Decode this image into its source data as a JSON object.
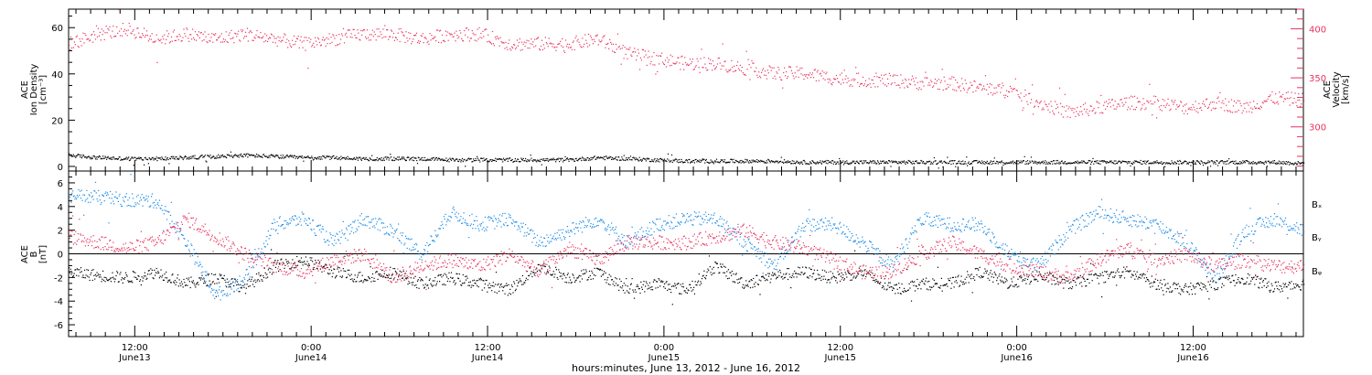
{
  "chart_data": [
    {
      "type": "scatter",
      "panel": "top",
      "ylabel_left": [
        "ACE",
        "Ion Density",
        "[cm⁻³]"
      ],
      "ylabel_right": [
        "ACE",
        "Velocity",
        "[km/s]"
      ],
      "ylim_left": [
        -2,
        68
      ],
      "ylim_right": [
        255,
        420
      ],
      "yticks_left": [
        0,
        20,
        40,
        60
      ],
      "yticks_right": [
        300,
        350,
        400
      ],
      "colors": {
        "density": "#000000",
        "velocity": "#e8335f"
      },
      "series": [
        {
          "axis": "left",
          "color": "#000000",
          "points": [
            [
              0,
              5
            ],
            [
              2,
              4
            ],
            [
              4,
              3.5
            ],
            [
              6,
              3.5
            ],
            [
              8,
              4
            ],
            [
              10,
              4.5
            ],
            [
              12,
              5
            ],
            [
              14,
              4.5
            ],
            [
              16,
              4
            ],
            [
              18,
              4
            ],
            [
              20,
              3.5
            ],
            [
              22,
              3.5
            ],
            [
              24,
              3.5
            ],
            [
              26,
              3
            ],
            [
              28,
              3
            ],
            [
              30,
              3
            ],
            [
              32,
              3
            ],
            [
              34,
              3
            ],
            [
              36,
              4
            ],
            [
              38,
              3.5
            ],
            [
              40,
              3
            ],
            [
              42,
              2.5
            ],
            [
              44,
              2.5
            ],
            [
              46,
              2.5
            ],
            [
              48,
              2.5
            ],
            [
              50,
              2
            ],
            [
              52,
              2
            ],
            [
              54,
              2
            ],
            [
              56,
              2
            ],
            [
              58,
              2
            ],
            [
              60,
              2
            ],
            [
              62,
              2
            ],
            [
              64,
              2
            ],
            [
              66,
              2
            ],
            [
              68,
              2
            ],
            [
              70,
              2
            ],
            [
              72,
              2
            ],
            [
              74,
              2
            ],
            [
              76,
              2
            ],
            [
              78,
              2
            ],
            [
              80,
              2
            ],
            [
              82,
              2
            ],
            [
              84,
              1.5
            ]
          ]
        },
        {
          "axis": "right",
          "color": "#e8335f",
          "points": [
            [
              0,
              385
            ],
            [
              2,
              395
            ],
            [
              4,
              400
            ],
            [
              6,
              390
            ],
            [
              8,
              395
            ],
            [
              10,
              390
            ],
            [
              12,
              395
            ],
            [
              14,
              390
            ],
            [
              16,
              385
            ],
            [
              18,
              390
            ],
            [
              20,
              395
            ],
            [
              22,
              395
            ],
            [
              24,
              390
            ],
            [
              26,
              395
            ],
            [
              28,
              395
            ],
            [
              30,
              385
            ],
            [
              32,
              385
            ],
            [
              34,
              385
            ],
            [
              36,
              390
            ],
            [
              38,
              375
            ],
            [
              40,
              370
            ],
            [
              42,
              365
            ],
            [
              44,
              365
            ],
            [
              46,
              360
            ],
            [
              48,
              355
            ],
            [
              50,
              355
            ],
            [
              52,
              350
            ],
            [
              54,
              348
            ],
            [
              56,
              348
            ],
            [
              58,
              345
            ],
            [
              60,
              345
            ],
            [
              62,
              340
            ],
            [
              64,
              338
            ],
            [
              66,
              325
            ],
            [
              68,
              315
            ],
            [
              70,
              320
            ],
            [
              72,
              325
            ],
            [
              74,
              325
            ],
            [
              76,
              320
            ],
            [
              78,
              325
            ],
            [
              80,
              320
            ],
            [
              82,
              330
            ],
            [
              84,
              328
            ]
          ]
        }
      ]
    },
    {
      "type": "scatter",
      "panel": "bottom",
      "ylabel_left": [
        "ACE",
        "B",
        "[nT]"
      ],
      "ylim": [
        -7,
        7
      ],
      "yticks": [
        -6,
        -4,
        -2,
        0,
        2,
        4,
        6
      ],
      "legend": [
        "Bₓ",
        "Bᵧ",
        "Bᵩ"
      ],
      "legend_placement": "right",
      "colors": {
        "Bx": "#000000",
        "By": "#1a8ae6",
        "Bz": "#e8335f"
      },
      "series": [
        {
          "name": "Bₓ",
          "color": "#000000",
          "points": [
            [
              0,
              -1.5
            ],
            [
              2,
              -1.8
            ],
            [
              4,
              -2
            ],
            [
              6,
              -1.5
            ],
            [
              8,
              -2.5
            ],
            [
              10,
              -2
            ],
            [
              12,
              -2.8
            ],
            [
              14,
              -1
            ],
            [
              16,
              -0.5
            ],
            [
              18,
              -1.5
            ],
            [
              20,
              -2
            ],
            [
              22,
              -1.5
            ],
            [
              24,
              -2.5
            ],
            [
              26,
              -2
            ],
            [
              28,
              -2.5
            ],
            [
              30,
              -3
            ],
            [
              32,
              -1
            ],
            [
              34,
              -2
            ],
            [
              36,
              -1.5
            ],
            [
              38,
              -3
            ],
            [
              40,
              -2.5
            ],
            [
              42,
              -3
            ],
            [
              44,
              -1
            ],
            [
              46,
              -2.5
            ],
            [
              48,
              -1.8
            ],
            [
              50,
              -1.5
            ],
            [
              52,
              -2
            ],
            [
              54,
              -1.5
            ],
            [
              56,
              -3
            ],
            [
              58,
              -2.5
            ],
            [
              60,
              -2.5
            ],
            [
              62,
              -1.5
            ],
            [
              64,
              -2.5
            ],
            [
              66,
              -1.8
            ],
            [
              68,
              -2.5
            ],
            [
              70,
              -2
            ],
            [
              72,
              -1.5
            ],
            [
              74,
              -2.5
            ],
            [
              76,
              -3
            ],
            [
              78,
              -2.5
            ],
            [
              80,
              -2
            ],
            [
              82,
              -2.8
            ],
            [
              84,
              -2.5
            ]
          ]
        },
        {
          "name": "Bᵧ",
          "color": "#1a8ae6",
          "points": [
            [
              0,
              5
            ],
            [
              2,
              4.8
            ],
            [
              4,
              4.6
            ],
            [
              6,
              4.5
            ],
            [
              8,
              1
            ],
            [
              10,
              -3.5
            ],
            [
              12,
              -2
            ],
            [
              14,
              2.5
            ],
            [
              16,
              3
            ],
            [
              18,
              1
            ],
            [
              20,
              3
            ],
            [
              22,
              2
            ],
            [
              24,
              0
            ],
            [
              26,
              3.5
            ],
            [
              28,
              2.5
            ],
            [
              30,
              3
            ],
            [
              32,
              1
            ],
            [
              34,
              2
            ],
            [
              36,
              3
            ],
            [
              38,
              1
            ],
            [
              40,
              2.5
            ],
            [
              42,
              3
            ],
            [
              44,
              3
            ],
            [
              46,
              1
            ],
            [
              48,
              -1
            ],
            [
              50,
              2.5
            ],
            [
              52,
              2.5
            ],
            [
              54,
              1
            ],
            [
              56,
              -1
            ],
            [
              58,
              3
            ],
            [
              60,
              2.5
            ],
            [
              62,
              2.5
            ],
            [
              64,
              0
            ],
            [
              66,
              -1
            ],
            [
              68,
              2
            ],
            [
              70,
              3.5
            ],
            [
              72,
              3
            ],
            [
              74,
              2.5
            ],
            [
              76,
              1
            ],
            [
              78,
              -2
            ],
            [
              80,
              2
            ],
            [
              82,
              3
            ],
            [
              84,
              2
            ]
          ]
        },
        {
          "name": "Bᵩ",
          "color": "#e8335f",
          "points": [
            [
              0,
              1.5
            ],
            [
              2,
              1
            ],
            [
              4,
              0.5
            ],
            [
              6,
              1
            ],
            [
              8,
              3
            ],
            [
              10,
              1.5
            ],
            [
              12,
              0
            ],
            [
              14,
              -1
            ],
            [
              16,
              -1.5
            ],
            [
              18,
              -0.5
            ],
            [
              20,
              0
            ],
            [
              22,
              -2
            ],
            [
              24,
              -1
            ],
            [
              26,
              -0.5
            ],
            [
              28,
              -1
            ],
            [
              30,
              0
            ],
            [
              32,
              -1.5
            ],
            [
              34,
              0.5
            ],
            [
              36,
              -0.5
            ],
            [
              38,
              1
            ],
            [
              40,
              1
            ],
            [
              42,
              1
            ],
            [
              44,
              1.5
            ],
            [
              46,
              2
            ],
            [
              48,
              1
            ],
            [
              50,
              0.5
            ],
            [
              52,
              -0.5
            ],
            [
              54,
              -1.5
            ],
            [
              56,
              -1.5
            ],
            [
              58,
              0
            ],
            [
              60,
              1
            ],
            [
              62,
              0
            ],
            [
              64,
              -1
            ],
            [
              66,
              -1.5
            ],
            [
              68,
              -2
            ],
            [
              70,
              -0.5
            ],
            [
              72,
              0.5
            ],
            [
              74,
              -0.5
            ],
            [
              76,
              0
            ],
            [
              78,
              -1
            ],
            [
              80,
              -0.5
            ],
            [
              82,
              -1
            ],
            [
              84,
              -1
            ]
          ]
        }
      ]
    }
  ],
  "x_axis": {
    "title": "hours:minutes, June 13, 2012 - June 16, 2012",
    "xlim_hours_since_june13": [
      7.5,
      91.5
    ],
    "ticks": [
      {
        "hours": 12,
        "time": "12:00",
        "day": "June13"
      },
      {
        "hours": 24,
        "time": "0:00",
        "day": "June14"
      },
      {
        "hours": 36,
        "time": "12:00",
        "day": "June14"
      },
      {
        "hours": 48,
        "time": "0:00",
        "day": "June15"
      },
      {
        "hours": 60,
        "time": "12:00",
        "day": "June15"
      },
      {
        "hours": 72,
        "time": "0:00",
        "day": "June16"
      },
      {
        "hours": 84,
        "time": "12:00",
        "day": "June16"
      }
    ]
  }
}
